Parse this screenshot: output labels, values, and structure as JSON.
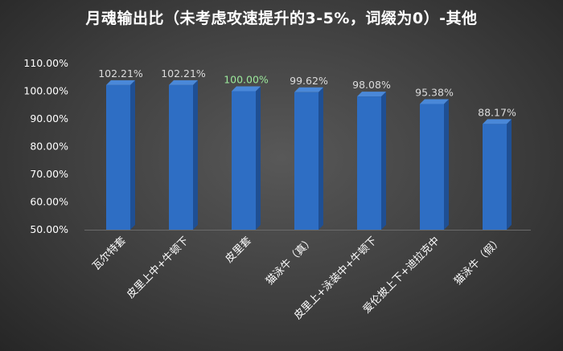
{
  "chart_data": {
    "type": "bar",
    "title": "月魂输出比（未考虑攻速提升的3-5%，词缀为0）-其他",
    "categories": [
      "瓦尔特套",
      "皮里上中+牛顿下",
      "皮里套",
      "猫泳牛（真）",
      "皮里上+泳装中+牛顿下",
      "爱伦披上下+迪拉克中",
      "猫泳牛（假）"
    ],
    "values": [
      102.21,
      102.21,
      100.0,
      99.62,
      98.08,
      95.38,
      88.17
    ],
    "data_labels": [
      "102.21%",
      "102.21%",
      "100.00%",
      "99.62%",
      "98.08%",
      "95.38%",
      "88.17%"
    ],
    "highlight_index": 2,
    "y_ticks": [
      "50.00%",
      "60.00%",
      "70.00%",
      "80.00%",
      "90.00%",
      "100.00%",
      "110.00%"
    ],
    "ylim": [
      50,
      110
    ],
    "grid": false,
    "colors": {
      "bar_front": "#2e6ec4",
      "bar_side": "#1f4f93",
      "bar_top": "#4a88d8",
      "label": "#dcdcdc",
      "highlight_label": "#9be89b",
      "axis_text": "#ffffff"
    }
  }
}
